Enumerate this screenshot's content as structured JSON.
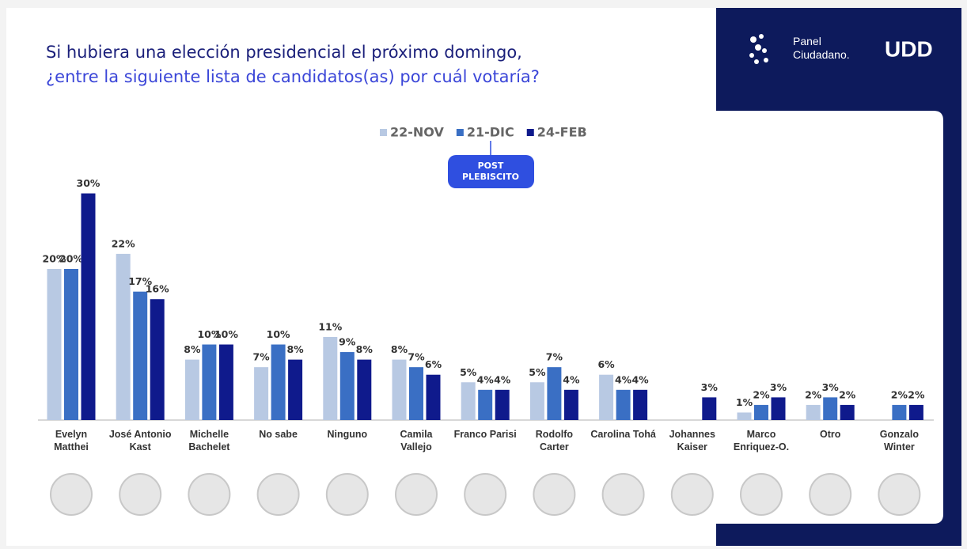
{
  "chart_data": {
    "type": "bar",
    "title": "Si hubiera una elección presidencial el próximo domingo,",
    "subtitle": "¿entre la siguiente lista de candidatos(as) por cuál votaría?",
    "annotation": "POST PLEBISCITO",
    "categories": [
      "Evelyn Matthei",
      "José Antonio Kast",
      "Michelle Bachelet",
      "No sabe",
      "Ninguno",
      "Camila Vallejo",
      "Franco Parisi",
      "Rodolfo Carter",
      "Carolina Tohá",
      "Johannes Kaiser",
      "Marco Enriquez-O.",
      "Otro",
      "Gonzalo Winter"
    ],
    "series": [
      {
        "name": "22-NOV",
        "color": "#b8c9e3",
        "values": [
          20,
          22,
          8,
          7,
          11,
          8,
          5,
          5,
          6,
          null,
          1,
          2,
          null
        ],
        "value_labels": [
          "20%",
          "22%",
          "8%",
          "7%",
          "11%",
          "8%",
          "5%",
          "5%",
          "6%",
          null,
          "1%",
          "2%",
          null
        ]
      },
      {
        "name": "21-DIC",
        "color": "#3a6fc4",
        "values": [
          20,
          17,
          10,
          10,
          9,
          7,
          4,
          7,
          4,
          null,
          2,
          3,
          2
        ],
        "value_labels": [
          "20%",
          "17%",
          "10%",
          "10%",
          "9%",
          "7%",
          "4%",
          "7%",
          "4%",
          null,
          "2%",
          "3%",
          "2%"
        ]
      },
      {
        "name": "24-FEB",
        "color": "#0f1a8c",
        "values": [
          30,
          16,
          10,
          8,
          8,
          6,
          4,
          4,
          4,
          3,
          3,
          2,
          2
        ],
        "value_labels": [
          "30%",
          "16%",
          "10%",
          "8%",
          "8%",
          "6%",
          "4%",
          "4%",
          "4%",
          "3%",
          "3%",
          "2%",
          "2%"
        ]
      }
    ]
  },
  "logo": {
    "text": "Panel Ciudadano.",
    "brand": "UDD"
  }
}
